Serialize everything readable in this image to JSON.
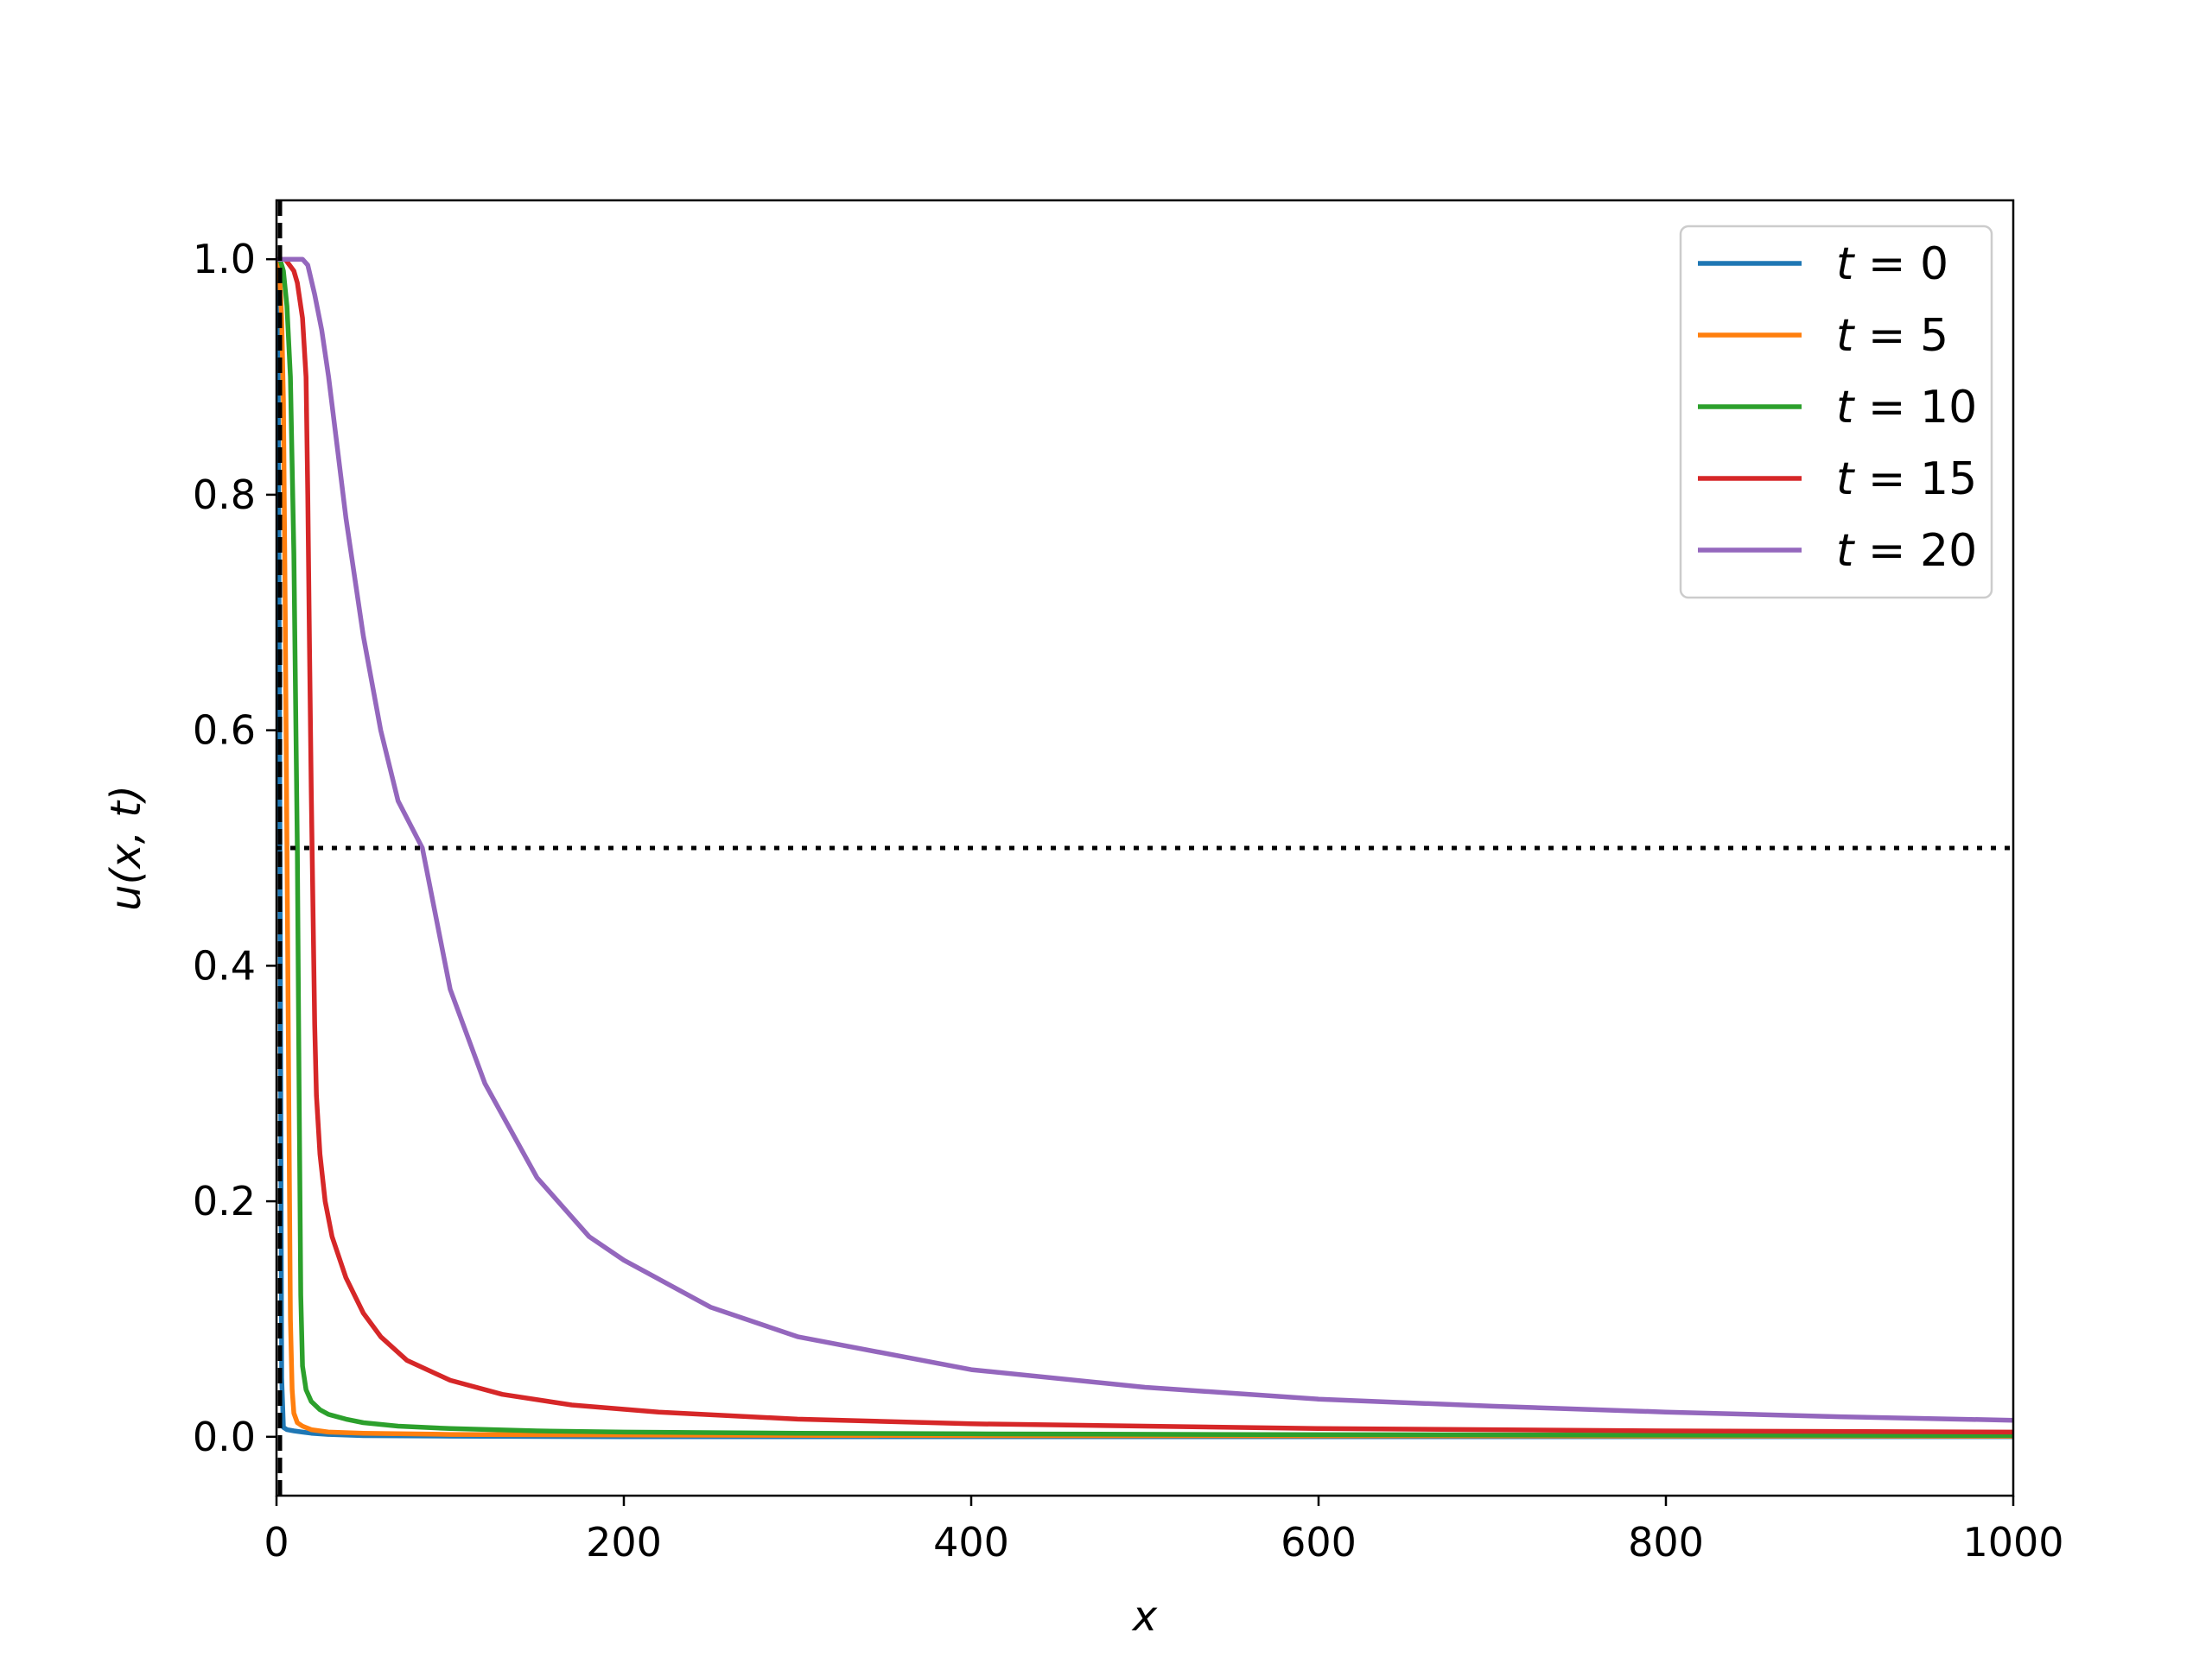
{
  "chart_data": {
    "type": "line",
    "xlabel": "x",
    "ylabel": "u(x, t)",
    "xlim": [
      0,
      1000
    ],
    "ylim": [
      -0.05,
      1.05
    ],
    "x_ticks": [
      0,
      200,
      400,
      600,
      800,
      1000
    ],
    "y_ticks": [
      0.0,
      0.2,
      0.4,
      0.6,
      0.8,
      1.0
    ],
    "x_tick_labels": [
      "0",
      "200",
      "400",
      "600",
      "800",
      "1000"
    ],
    "y_tick_labels": [
      "0.0",
      "0.2",
      "0.4",
      "0.6",
      "0.8",
      "1.0"
    ],
    "grid": false,
    "legend_position": "top-right",
    "reference_lines": [
      {
        "orientation": "horizontal",
        "y": 0.5,
        "style": "dotted",
        "color": "#000000"
      },
      {
        "orientation": "vertical",
        "x": 2,
        "style": "dashed",
        "color": "#000000"
      }
    ],
    "series": [
      {
        "name": "t = 0",
        "legend_var": "t",
        "legend_value": "0",
        "color": "#1f77b4",
        "x": [
          0,
          1,
          2,
          3,
          4,
          6,
          10,
          15,
          20,
          30,
          50,
          100,
          200,
          400,
          600,
          800,
          1000
        ],
        "y": [
          1.0,
          0.9,
          0.5,
          0.05,
          0.008,
          0.006,
          0.005,
          0.004,
          0.003,
          0.002,
          0.001,
          0.0005,
          0.0,
          0.0,
          0.0,
          0.0,
          0.0
        ]
      },
      {
        "name": "t = 5",
        "legend_var": "t",
        "legend_value": "5",
        "color": "#ff7f0e",
        "x": [
          0,
          1,
          2,
          3,
          4,
          5,
          6,
          7,
          8,
          9,
          10,
          12,
          15,
          20,
          30,
          50,
          100,
          200,
          400,
          600,
          800,
          1000
        ],
        "y": [
          1.0,
          1.0,
          0.98,
          0.95,
          0.88,
          0.7,
          0.5,
          0.3,
          0.1,
          0.04,
          0.02,
          0.012,
          0.009,
          0.006,
          0.004,
          0.003,
          0.002,
          0.0015,
          0.001,
          0.0008,
          0.0006,
          0.0005
        ]
      },
      {
        "name": "t = 10",
        "legend_var": "t",
        "legend_value": "10",
        "color": "#2ca02c",
        "x": [
          0,
          2,
          4,
          6,
          8,
          10,
          12,
          13,
          14,
          15,
          17,
          20,
          25,
          30,
          40,
          50,
          70,
          100,
          150,
          200,
          300,
          400,
          600,
          800,
          1000
        ],
        "y": [
          1.0,
          1.0,
          0.99,
          0.96,
          0.9,
          0.75,
          0.5,
          0.3,
          0.12,
          0.06,
          0.04,
          0.03,
          0.023,
          0.019,
          0.015,
          0.012,
          0.009,
          0.007,
          0.005,
          0.004,
          0.003,
          0.0025,
          0.0018,
          0.0014,
          0.0011
        ]
      },
      {
        "name": "t = 15",
        "legend_var": "t",
        "legend_value": "15",
        "color": "#d62728",
        "x": [
          0,
          5,
          10,
          12,
          15,
          17,
          18,
          19,
          20,
          21,
          22,
          23,
          25,
          28,
          32,
          40,
          50,
          60,
          75,
          100,
          130,
          170,
          220,
          300,
          400,
          500,
          600,
          800,
          1000
        ],
        "y": [
          1.0,
          1.0,
          0.99,
          0.98,
          0.95,
          0.9,
          0.8,
          0.67,
          0.55,
          0.45,
          0.35,
          0.29,
          0.24,
          0.2,
          0.17,
          0.135,
          0.105,
          0.085,
          0.065,
          0.048,
          0.036,
          0.027,
          0.021,
          0.015,
          0.011,
          0.009,
          0.007,
          0.005,
          0.004
        ]
      },
      {
        "name": "t = 20",
        "legend_var": "t",
        "legend_value": "20",
        "color": "#9467bd",
        "x": [
          0,
          10,
          15,
          18,
          22,
          26,
          30,
          35,
          40,
          50,
          60,
          70,
          84,
          100,
          120,
          150,
          180,
          200,
          250,
          300,
          400,
          500,
          600,
          700,
          800,
          900,
          1000
        ],
        "y": [
          1.0,
          1.0,
          1.0,
          0.995,
          0.97,
          0.94,
          0.9,
          0.84,
          0.78,
          0.68,
          0.6,
          0.54,
          0.5,
          0.38,
          0.3,
          0.22,
          0.17,
          0.15,
          0.11,
          0.085,
          0.057,
          0.042,
          0.032,
          0.026,
          0.021,
          0.017,
          0.014
        ]
      }
    ]
  }
}
